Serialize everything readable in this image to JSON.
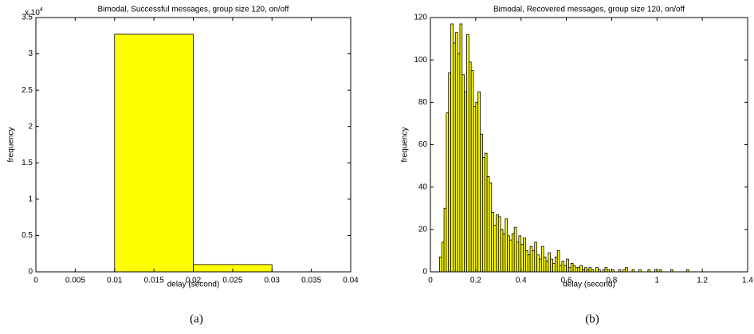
{
  "chart_data": [
    {
      "type": "histogram",
      "title": "Bimodal, Successful messages, group size 120, on/off",
      "x_label": "delay (second)",
      "y_label": "frequency",
      "caption": "(a)",
      "y_multiplier": "x 10",
      "y_multiplier_exponent": "4",
      "bins": [
        0,
        0.01,
        0.02,
        0.03,
        0.04
      ],
      "counts": [
        0,
        3.27,
        0.1,
        0
      ],
      "color": "#ffff00",
      "edge_color": "#000000",
      "xlim": [
        0,
        0.04
      ],
      "xticks": [
        0,
        0.005,
        0.01,
        0.015,
        0.02,
        0.025,
        0.03,
        0.035,
        0.04
      ],
      "ylim": [
        0,
        3.5
      ],
      "yticks": [
        0,
        0.5,
        1,
        1.5,
        2,
        2.5,
        3,
        3.5
      ],
      "grid": false
    },
    {
      "type": "histogram",
      "title": "Bimodal, Recovered messages, group size 120, on/off",
      "x_label": "delay (second)",
      "y_label": "frequency",
      "caption": "(b)",
      "bins": [
        0.03,
        0.04,
        0.05,
        0.06,
        0.07,
        0.08,
        0.09,
        0.1,
        0.11,
        0.12,
        0.13,
        0.14,
        0.15,
        0.16,
        0.17,
        0.18,
        0.19,
        0.2,
        0.21,
        0.22,
        0.23,
        0.24,
        0.25,
        0.26,
        0.27,
        0.28,
        0.29,
        0.3,
        0.31,
        0.32,
        0.33,
        0.34,
        0.35,
        0.36,
        0.37,
        0.38,
        0.39,
        0.4,
        0.41,
        0.42,
        0.43,
        0.44,
        0.45,
        0.46,
        0.47,
        0.48,
        0.49,
        0.5,
        0.51,
        0.52,
        0.53,
        0.54,
        0.55,
        0.56,
        0.57,
        0.58,
        0.59,
        0.6,
        0.61,
        0.62,
        0.63,
        0.64,
        0.65,
        0.66,
        0.67,
        0.68,
        0.69,
        0.7,
        0.71,
        0.72,
        0.73,
        0.74,
        0.75,
        0.76,
        0.77,
        0.78,
        0.79,
        0.8,
        0.81,
        0.82,
        0.83,
        0.84,
        0.85,
        0.86,
        0.87,
        0.88,
        0.89,
        0.9,
        0.91,
        0.92,
        0.93,
        0.94,
        0.95,
        0.96,
        0.97,
        0.98,
        0.99,
        1,
        1.01,
        1.02,
        1.03,
        1.04,
        1.05,
        1.06,
        1.07,
        1.08,
        1.09,
        1.1,
        1.11,
        1.12,
        1.13,
        1.14,
        1.15
      ],
      "counts": [
        0,
        7,
        14,
        30,
        75,
        94,
        117,
        108,
        113,
        103,
        117,
        93,
        85,
        112,
        99,
        95,
        78,
        80,
        85,
        65,
        54,
        56,
        45,
        42,
        28,
        22,
        27,
        26,
        20,
        18,
        25,
        17,
        15,
        18,
        21,
        14,
        17,
        13,
        16,
        10,
        8,
        12,
        10,
        14,
        8,
        6,
        12,
        7,
        5,
        9,
        6,
        4,
        7,
        10,
        3,
        5,
        3,
        6,
        2,
        4,
        3,
        2,
        2,
        3,
        1,
        2,
        1,
        2,
        1,
        0,
        2,
        1,
        0,
        1,
        2,
        1,
        0,
        1,
        0,
        0,
        1,
        0,
        1,
        2,
        0,
        0,
        1,
        0,
        0,
        1,
        0,
        0,
        0,
        1,
        0,
        0,
        1,
        0,
        1,
        0,
        0,
        0,
        0,
        1,
        0,
        0,
        0,
        0,
        0,
        0,
        1,
        0
      ],
      "color": "#ffff00",
      "edge_color": "#000000",
      "xlim": [
        0,
        1.4
      ],
      "xticks": [
        0,
        0.2,
        0.4,
        0.6,
        0.8,
        1,
        1.2,
        1.4
      ],
      "ylim": [
        0,
        120
      ],
      "yticks": [
        0,
        20,
        40,
        60,
        80,
        100,
        120
      ],
      "grid": false
    }
  ]
}
